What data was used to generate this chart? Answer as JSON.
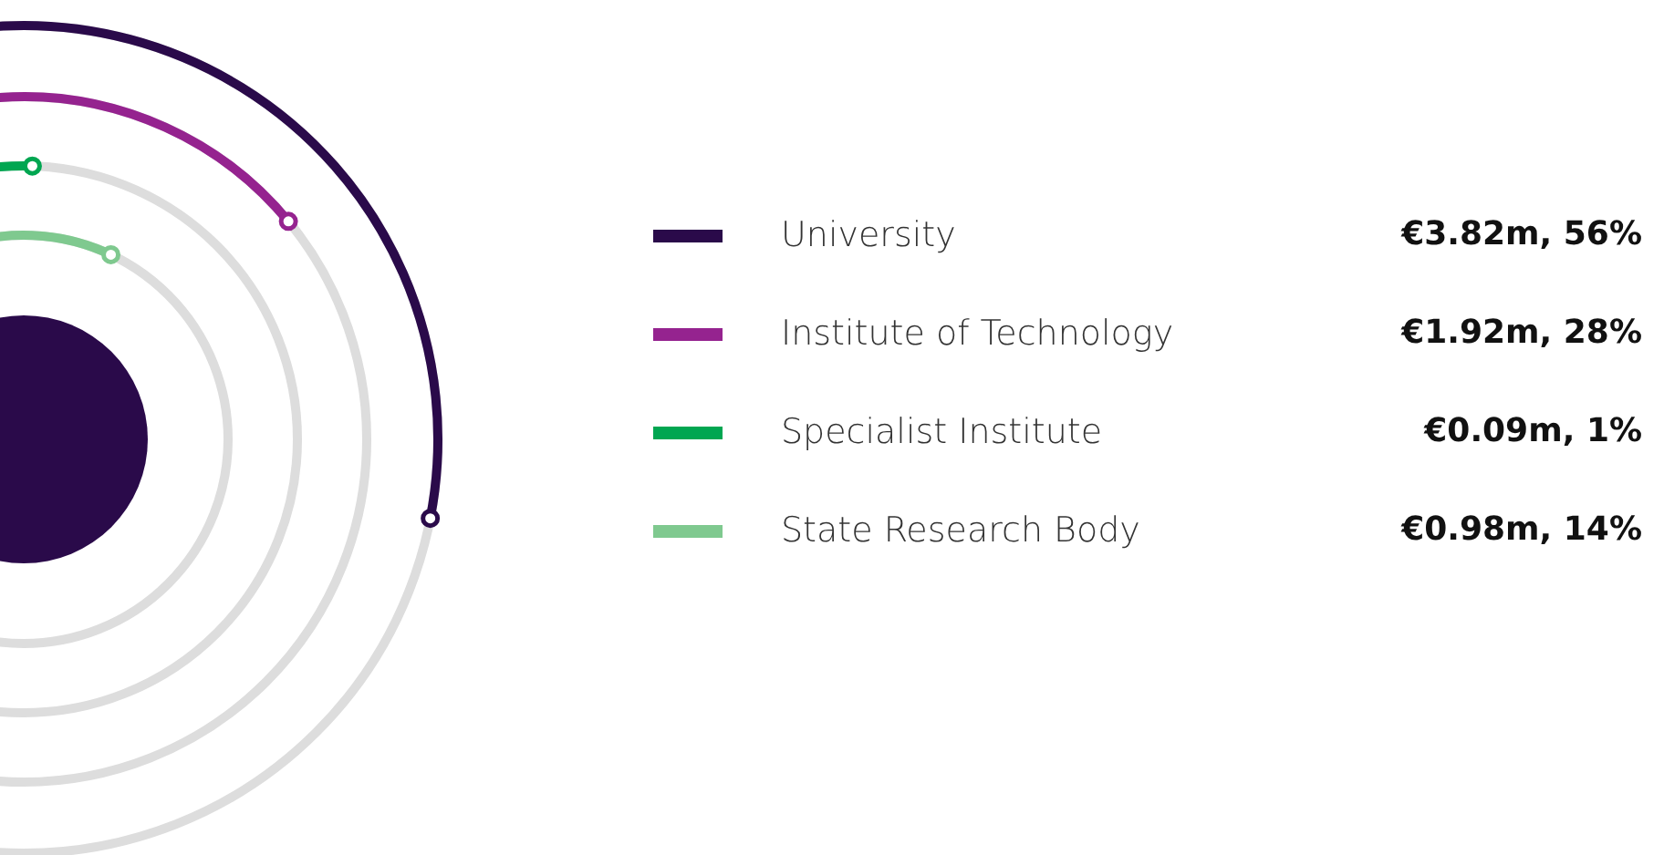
{
  "chart_data": {
    "type": "other",
    "categories": [
      "University",
      "Institute of Technology",
      "Specialist Institute",
      "State Research Body"
    ],
    "colors": [
      "#2a0a4a",
      "#95238f",
      "#00a651",
      "#7fc98f"
    ],
    "series": [
      {
        "values": [
          3.82,
          1.92,
          0.09,
          0.98
        ],
        "value_labels": [
          "€3.82m,",
          "€1.92m,",
          "€0.09m,",
          "€0.98m,"
        ]
      },
      {
        "values": [
          56,
          28,
          1,
          14
        ],
        "value_labels": [
          "56%",
          "28%",
          "1%",
          "14%"
        ]
      }
    ]
  }
}
